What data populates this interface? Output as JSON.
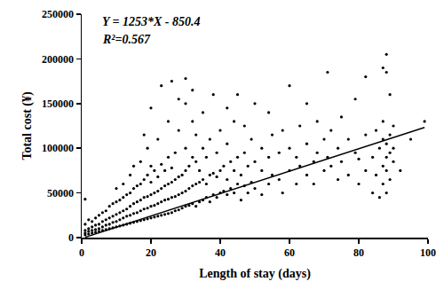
{
  "chart_data": {
    "type": "scatter",
    "x_label": "Length of stay (days)",
    "y_label": "Total cost (¥)",
    "annotations": [
      "Y = 1253*X - 850.4",
      "R²=0.567"
    ],
    "xlim": [
      0,
      100
    ],
    "xticks": [
      0,
      20,
      40,
      60,
      80,
      100
    ],
    "ylim": [
      0,
      250000
    ],
    "yticks": [
      0,
      50000,
      100000,
      150000,
      200000,
      250000
    ],
    "grid": false,
    "series": [
      {
        "type": "scatter",
        "marker": "circle",
        "color": "#000000",
        "x": [
          1,
          1,
          1,
          1,
          1,
          2,
          2,
          2,
          2,
          3,
          3,
          3,
          3,
          4,
          4,
          4,
          4,
          5,
          5,
          5,
          5,
          6,
          6,
          6,
          6,
          7,
          7,
          7,
          7,
          8,
          8,
          8,
          8,
          9,
          9,
          9,
          9,
          10,
          10,
          10,
          10,
          10,
          11,
          11,
          11,
          11,
          12,
          12,
          12,
          12,
          12,
          13,
          13,
          13,
          13,
          14,
          14,
          14,
          14,
          14,
          15,
          15,
          15,
          15,
          15,
          16,
          16,
          16,
          16,
          17,
          17,
          17,
          17,
          17,
          18,
          18,
          18,
          18,
          18,
          19,
          19,
          19,
          19,
          19,
          20,
          20,
          20,
          20,
          20,
          20,
          21,
          21,
          21,
          21,
          22,
          22,
          22,
          22,
          22,
          23,
          23,
          23,
          23,
          23,
          24,
          24,
          24,
          24,
          25,
          25,
          25,
          25,
          25,
          26,
          26,
          26,
          26,
          26,
          27,
          27,
          27,
          27,
          28,
          28,
          28,
          28,
          28,
          29,
          29,
          29,
          30,
          30,
          30,
          30,
          30,
          30,
          31,
          31,
          31,
          32,
          32,
          32,
          32,
          32,
          33,
          33,
          33,
          33,
          34,
          34,
          34,
          35,
          35,
          35,
          35,
          36,
          36,
          36,
          37,
          37,
          37,
          38,
          38,
          38,
          39,
          39,
          39,
          40,
          40,
          40,
          41,
          41,
          42,
          42,
          42,
          42,
          43,
          43,
          44,
          44,
          44,
          45,
          45,
          45,
          46,
          46,
          47,
          47,
          47,
          48,
          48,
          49,
          49,
          50,
          50,
          50,
          52,
          52,
          52,
          54,
          54,
          54,
          55,
          55,
          57,
          57,
          58,
          58,
          60,
          60,
          60,
          62,
          62,
          63,
          63,
          65,
          65,
          65,
          67,
          67,
          68,
          68,
          70,
          70,
          71,
          71,
          72,
          72,
          74,
          74,
          75,
          75,
          77,
          77,
          79,
          79,
          80,
          80,
          82,
          82,
          82,
          84,
          84,
          85,
          85,
          86,
          86,
          87,
          87,
          87,
          87,
          87,
          88,
          88,
          88,
          88,
          88,
          88,
          89,
          89,
          89,
          89,
          90,
          90,
          90,
          92,
          95,
          99
        ],
        "values": [
          3000,
          5000,
          8000,
          15000,
          43000,
          4000,
          7000,
          10000,
          20000,
          5000,
          8000,
          12000,
          18000,
          6000,
          9000,
          14000,
          22000,
          7000,
          10000,
          15000,
          25000,
          8000,
          12000,
          18000,
          28000,
          9000,
          14000,
          20000,
          30000,
          10000,
          15000,
          22000,
          35000,
          11000,
          17000,
          24000,
          38000,
          12000,
          18000,
          26000,
          40000,
          55000,
          13000,
          20000,
          28000,
          42000,
          14000,
          22000,
          30000,
          45000,
          60000,
          15000,
          24000,
          32000,
          48000,
          16000,
          25000,
          35000,
          50000,
          70000,
          17000,
          27000,
          38000,
          55000,
          80000,
          18000,
          28000,
          40000,
          58000,
          19000,
          30000,
          42000,
          60000,
          85000,
          20000,
          32000,
          45000,
          65000,
          115000,
          21000,
          33000,
          46000,
          70000,
          100000,
          22000,
          35000,
          48000,
          62000,
          80000,
          145000,
          23000,
          36000,
          50000,
          75000,
          24000,
          38000,
          52000,
          68000,
          110000,
          25000,
          40000,
          55000,
          82000,
          170000,
          26000,
          42000,
          58000,
          75000,
          27000,
          43000,
          60000,
          90000,
          130000,
          28000,
          45000,
          62000,
          78000,
          175000,
          30000,
          46000,
          65000,
          95000,
          31000,
          48000,
          68000,
          120000,
          155000,
          33000,
          50000,
          70000,
          35000,
          52000,
          75000,
          100000,
          150000,
          178000,
          36000,
          55000,
          80000,
          38000,
          58000,
          90000,
          130000,
          165000,
          35000,
          60000,
          85000,
          115000,
          40000,
          62000,
          75000,
          42000,
          65000,
          100000,
          140000,
          45000,
          60000,
          90000,
          40000,
          70000,
          110000,
          48000,
          72000,
          160000,
          45000,
          68000,
          95000,
          50000,
          75000,
          120000,
          52000,
          80000,
          48000,
          65000,
          105000,
          145000,
          55000,
          85000,
          50000,
          75000,
          130000,
          60000,
          90000,
          160000,
          42000,
          70000,
          58000,
          95000,
          125000,
          50000,
          80000,
          62000,
          110000,
          55000,
          85000,
          150000,
          48000,
          75000,
          100000,
          60000,
          90000,
          140000,
          70000,
          115000,
          65000,
          95000,
          50000,
          120000,
          75000,
          100000,
          170000,
          60000,
          90000,
          80000,
          125000,
          70000,
          105000,
          150000,
          85000,
          60000,
          95000,
          130000,
          75000,
          110000,
          90000,
          185000,
          80000,
          120000,
          65000,
          100000,
          85000,
          135000,
          70000,
          110000,
          95000,
          155000,
          60000,
          88000,
          75000,
          115000,
          180000,
          50000,
          90000,
          70000,
          120000,
          45000,
          100000,
          80000,
          110000,
          190000,
          130000,
          60000,
          90000,
          105000,
          205000,
          185000,
          50000,
          75000,
          95000,
          115000,
          160000,
          65000,
          85000,
          100000,
          125000,
          75000,
          110000,
          130000
        ]
      },
      {
        "type": "line",
        "line_style": "solid",
        "color": "#000000",
        "x": [
          1,
          99
        ],
        "values": [
          402.6,
          123196.6
        ]
      }
    ]
  }
}
